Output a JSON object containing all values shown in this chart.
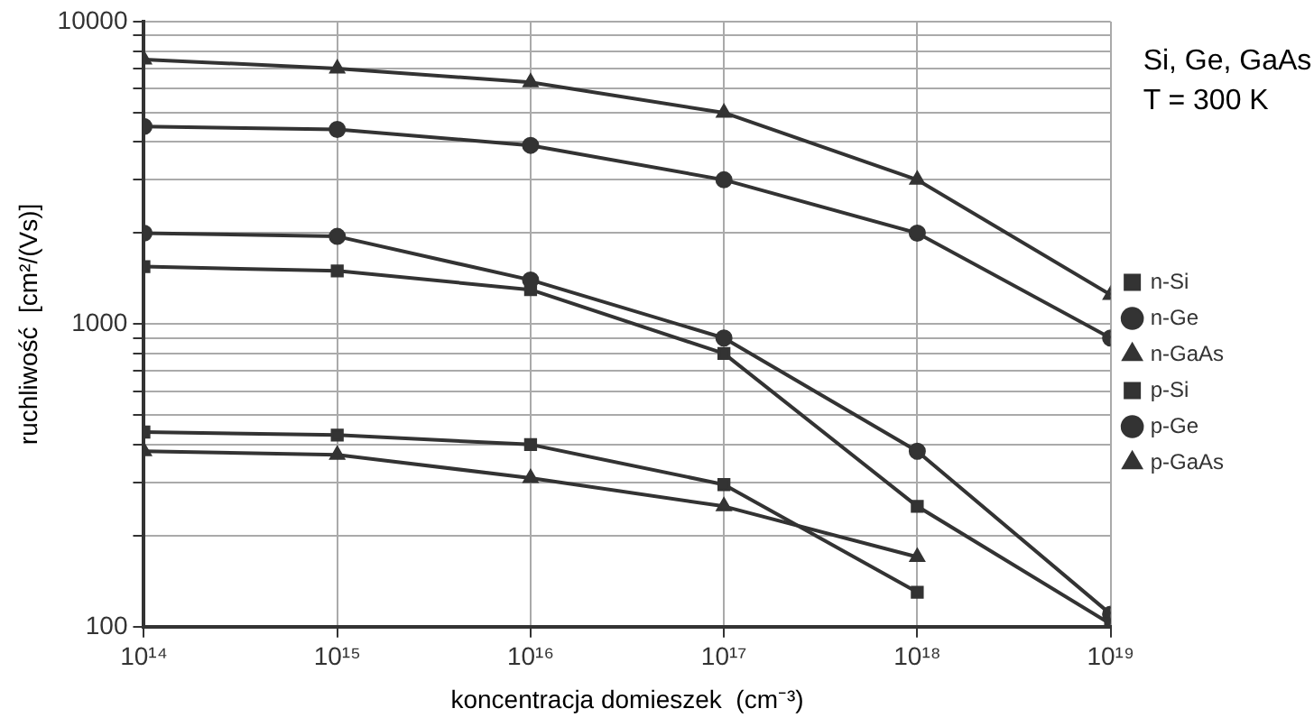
{
  "chart_data": {
    "type": "line",
    "xlabel": "koncentracja domieszek  (cm⁻³)",
    "ylabel": "ruchliwość  [cm²/(Vs)]",
    "annotations": [
      "Si, Ge, GaAs",
      "T = 300 K"
    ],
    "x": [
      100000000000000.0,
      1000000000000000.0,
      1e+16,
      1e+17,
      1e+18,
      1e+19
    ],
    "log": "xy",
    "xlim": [
      100000000000000.0,
      1e+19
    ],
    "ylim": [
      100,
      10000
    ],
    "xticks": [
      {
        "value": 100000000000000.0,
        "label": "10¹⁴"
      },
      {
        "value": 1000000000000000.0,
        "label": "10¹⁵"
      },
      {
        "value": 1e+16,
        "label": "10¹⁶"
      },
      {
        "value": 1e+17,
        "label": "10¹⁷"
      },
      {
        "value": 1e+18,
        "label": "10¹⁸"
      },
      {
        "value": 1e+19,
        "label": "10¹⁹"
      }
    ],
    "yticks": [
      100,
      {
        "value": 200,
        "label": null
      },
      {
        "value": 300,
        "label": null
      },
      {
        "value": 400,
        "label": null
      },
      {
        "value": 500,
        "label": null
      },
      {
        "value": 600,
        "label": null
      },
      {
        "value": 700,
        "label": null
      },
      {
        "value": 800,
        "label": null
      },
      {
        "value": 900,
        "label": null
      },
      1000,
      {
        "value": 2000,
        "label": null
      },
      {
        "value": 3000,
        "label": null
      },
      {
        "value": 4000,
        "label": null
      },
      {
        "value": 5000,
        "label": null
      },
      {
        "value": 6000,
        "label": null
      },
      {
        "value": 7000,
        "label": null
      },
      {
        "value": 8000,
        "label": null
      },
      {
        "value": 9000,
        "label": null
      },
      10000
    ],
    "grid": true,
    "legend": "right",
    "line_style": "solid",
    "series": [
      {
        "name": "n-Si",
        "color": "#333333",
        "marker": "square",
        "values": [
          1550,
          1500,
          1300,
          800,
          250,
          102
        ]
      },
      {
        "name": "n-Ge",
        "color": "#333333",
        "marker": "circle",
        "values": [
          4500,
          4400,
          3900,
          3000,
          2000,
          900
        ]
      },
      {
        "name": "n-GaAs",
        "color": "#333333",
        "marker": "triangle",
        "values": [
          7500,
          7000,
          6300,
          5000,
          3000,
          1250
        ]
      },
      {
        "name": "p-Si",
        "color": "#333333",
        "marker": "square",
        "values": [
          440,
          430,
          400,
          295,
          130,
          null
        ]
      },
      {
        "name": "p-Ge",
        "color": "#333333",
        "marker": "circle",
        "values": [
          2000,
          1950,
          1400,
          900,
          380,
          110
        ]
      },
      {
        "name": "p-GaAs",
        "color": "#333333",
        "marker": "triangle",
        "values": [
          380,
          370,
          310,
          250,
          170,
          null
        ]
      }
    ]
  }
}
